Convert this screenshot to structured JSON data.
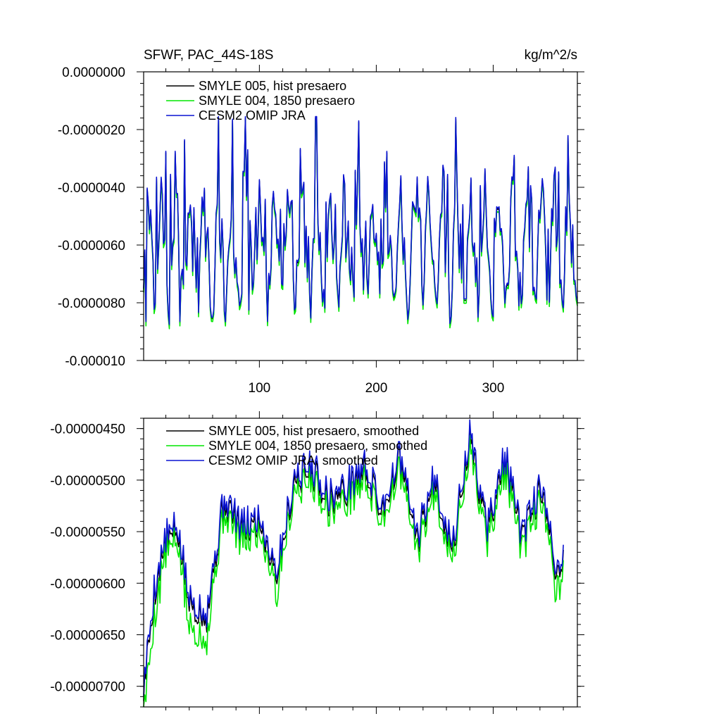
{
  "chart_data": [
    {
      "type": "line",
      "title": "SFWF, PAC_44S-18S",
      "units": "kg/m^2/s",
      "xlabel": "",
      "ylabel": "",
      "xlim": [
        1,
        372
      ],
      "ylim": [
        -1e-05,
        0.0
      ],
      "xticks": [
        100,
        200,
        300
      ],
      "xtick_labels": [
        "100",
        "200",
        "300"
      ],
      "yticks": [
        0.0,
        -2e-06,
        -4e-06,
        -6e-06,
        -8e-06,
        -1e-05
      ],
      "ytick_labels": [
        "0.0000000",
        "-0.0000020",
        "-0.0000040",
        "-0.0000060",
        "-0.0000080",
        "-0.000010"
      ],
      "legend_position": "top-left",
      "generator": {
        "kind": "monthly_cycle",
        "n": 372,
        "base": -6e-06,
        "amplitude": 2e-06,
        "early_span": [
          1,
          40
        ],
        "early_peak_months": [
          12,
          16,
          20,
          24,
          28,
          36
        ],
        "early_peak_values": [
          -3.7e-06,
          -3.7e-06,
          -2.8e-06,
          -3.6e-06,
          -2.8e-06,
          -2.4e-06
        ],
        "min_values": [
          -8.7e-06,
          -8.8e-06,
          -8.7e-06,
          -8.3e-06,
          -8.3e-06,
          -8.2e-06
        ]
      },
      "series": [
        {
          "name": "SMYLE 005, hist presaero",
          "color": "#000000",
          "offset": 0.0
        },
        {
          "name": "SMYLE 004, 1850 presaero",
          "color": "#00e600",
          "offset": -1e-07
        },
        {
          "name": "CESM2 OMIP JRA",
          "color": "#0a14d2",
          "offset": 5e-08
        }
      ]
    },
    {
      "type": "line",
      "title": "",
      "xlabel": "",
      "ylabel": "",
      "xlim": [
        1,
        372
      ],
      "ylim": [
        -7.2e-06,
        -4.4e-06
      ],
      "xticks": [
        100,
        200,
        300
      ],
      "xtick_labels": [
        "",
        "",
        ""
      ],
      "yticks": [
        -4.5e-06,
        -5e-06,
        -5.5e-06,
        -6e-06,
        -6.5e-06,
        -7e-06
      ],
      "ytick_labels": [
        "-0.00000450",
        "-0.00000500",
        "-0.00000550",
        "-0.00000600",
        "-0.00000650",
        "-0.00000700"
      ],
      "legend_position": "top-left",
      "generator": {
        "kind": "smoothed_cycle",
        "n": 360,
        "anchor_months": [
          1,
          10,
          20,
          30,
          40,
          55,
          70,
          85,
          100,
          115,
          130,
          145,
          160,
          175,
          190,
          205,
          220,
          235,
          250,
          265,
          280,
          295,
          310,
          325,
          340,
          355,
          360
        ],
        "anchor_values": [
          -7.05e-06,
          -6.1e-06,
          -5.6e-06,
          -5.5e-06,
          -6.2e-06,
          -6.3e-06,
          -5.2e-06,
          -5.5e-06,
          -5.4e-06,
          -5.9e-06,
          -5e-06,
          -4.9e-06,
          -5.2e-06,
          -5.1e-06,
          -4.9e-06,
          -5.3e-06,
          -4.8e-06,
          -5.6e-06,
          -5e-06,
          -5.7e-06,
          -4.6e-06,
          -5.5e-06,
          -4.8e-06,
          -5.6e-06,
          -5.1e-06,
          -5.9e-06,
          -5.8e-06
        ]
      },
      "series": [
        {
          "name": "SMYLE 005, hist presaero, smoothed",
          "color": "#000000",
          "offset": 0.0
        },
        {
          "name": "SMYLE 004, 1850 presaero, smoothed",
          "color": "#00e600",
          "offset": -1e-07
        },
        {
          "name": "CESM2 OMIP JRA, smoothed",
          "color": "#0a14d2",
          "offset": 5e-08
        }
      ]
    }
  ]
}
